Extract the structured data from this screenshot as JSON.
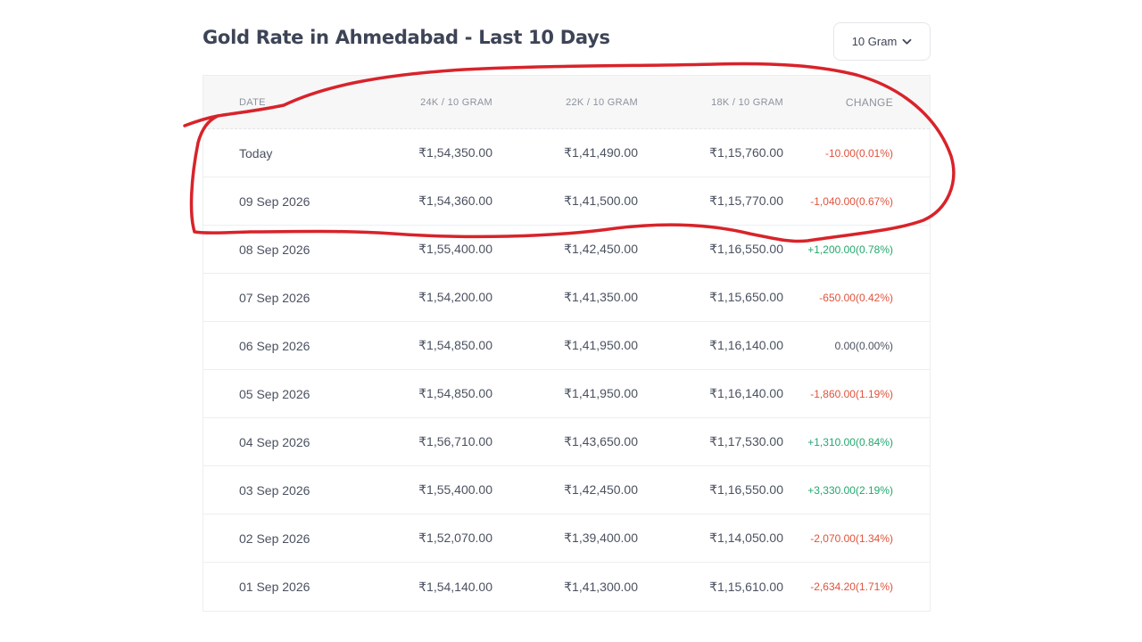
{
  "page": {
    "title": "Gold Rate in Ahmedabad - Last 10 Days"
  },
  "unit_select": {
    "value": "10 Gram",
    "icon": "chevron-down-icon"
  },
  "table": {
    "headers": {
      "date": "DATE",
      "k24": "24K / 10 GRAM",
      "k22": "22K / 10 GRAM",
      "k18": "18K / 10 GRAM",
      "change": "CHANGE"
    },
    "rows": [
      {
        "date": "Today",
        "k24": "₹1,54,350.00",
        "k22": "₹1,41,490.00",
        "k18": "₹1,15,760.00",
        "change": "-10.00(0.01%)",
        "trend": "neg"
      },
      {
        "date": "09 Sep 2026",
        "k24": "₹1,54,360.00",
        "k22": "₹1,41,500.00",
        "k18": "₹1,15,770.00",
        "change": "-1,040.00(0.67%)",
        "trend": "neg"
      },
      {
        "date": "08 Sep 2026",
        "k24": "₹1,55,400.00",
        "k22": "₹1,42,450.00",
        "k18": "₹1,16,550.00",
        "change": "+1,200.00(0.78%)",
        "trend": "pos"
      },
      {
        "date": "07 Sep 2026",
        "k24": "₹1,54,200.00",
        "k22": "₹1,41,350.00",
        "k18": "₹1,15,650.00",
        "change": "-650.00(0.42%)",
        "trend": "neg"
      },
      {
        "date": "06 Sep 2026",
        "k24": "₹1,54,850.00",
        "k22": "₹1,41,950.00",
        "k18": "₹1,16,140.00",
        "change": "0.00(0.00%)",
        "trend": "zero"
      },
      {
        "date": "05 Sep 2026",
        "k24": "₹1,54,850.00",
        "k22": "₹1,41,950.00",
        "k18": "₹1,16,140.00",
        "change": "-1,860.00(1.19%)",
        "trend": "neg"
      },
      {
        "date": "04 Sep 2026",
        "k24": "₹1,56,710.00",
        "k22": "₹1,43,650.00",
        "k18": "₹1,17,530.00",
        "change": "+1,310.00(0.84%)",
        "trend": "pos"
      },
      {
        "date": "03 Sep 2026",
        "k24": "₹1,55,400.00",
        "k22": "₹1,42,450.00",
        "k18": "₹1,16,550.00",
        "change": "+3,330.00(2.19%)",
        "trend": "pos"
      },
      {
        "date": "02 Sep 2026",
        "k24": "₹1,52,070.00",
        "k22": "₹1,39,400.00",
        "k18": "₹1,14,050.00",
        "change": "-2,070.00(1.34%)",
        "trend": "neg"
      },
      {
        "date": "01 Sep 2026",
        "k24": "₹1,54,140.00",
        "k22": "₹1,41,300.00",
        "k18": "₹1,15,610.00",
        "change": "-2,634.20(1.71%)",
        "trend": "neg"
      }
    ]
  },
  "colors": {
    "negative": "#e0533c",
    "positive": "#23a86f",
    "annotation": "#d8232a"
  }
}
